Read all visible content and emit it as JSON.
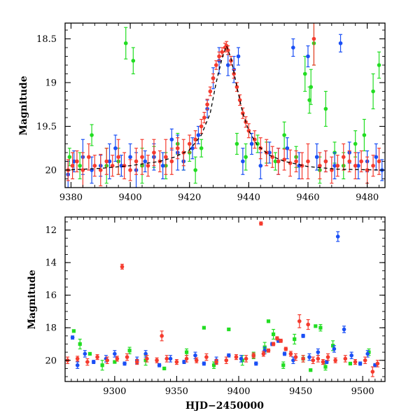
{
  "chart_data": [
    {
      "type": "scatter",
      "title": "",
      "xlabel": "",
      "ylabel": "Magnitude",
      "xlim": [
        9378,
        9486
      ],
      "ylim": [
        20.2,
        18.32
      ],
      "y_inverted": true,
      "x_ticks": [
        9380,
        9400,
        9420,
        9440,
        9460,
        9480
      ],
      "x_tick_labels": [
        "9380",
        "9400",
        "9420",
        "9440",
        "9460",
        "9480"
      ],
      "y_ticks": [
        18.5,
        19,
        19.5,
        20
      ],
      "y_tick_labels": [
        "18.5",
        "19",
        "19.5",
        "20"
      ],
      "model_curve": {
        "name": "model",
        "style": "dashed",
        "x": [
          9378,
          9390,
          9400,
          9410,
          9415,
          9420,
          9424,
          9427,
          9429,
          9431,
          9432.5,
          9434,
          9436,
          9438,
          9440,
          9443,
          9447,
          9452,
          9460,
          9470,
          9486
        ],
        "y": [
          20.0,
          19.98,
          19.95,
          19.9,
          19.85,
          19.77,
          19.6,
          19.35,
          19.0,
          18.72,
          18.58,
          18.72,
          19.05,
          19.35,
          19.55,
          19.72,
          19.83,
          19.9,
          19.96,
          19.99,
          20.0
        ]
      },
      "series": [
        {
          "name": "green",
          "color": "#22dd22",
          "x": [
            9379.5,
            9383,
            9387,
            9392,
            9396,
            9398.5,
            9401,
            9404,
            9408,
            9412,
            9416,
            9418,
            9420,
            9422,
            9424,
            9436,
            9439,
            9443,
            9446,
            9449,
            9452,
            9456,
            9459,
            9460.5,
            9461,
            9462,
            9464,
            9466,
            9469,
            9472,
            9476,
            9479,
            9482,
            9484
          ],
          "y": [
            19.85,
            19.95,
            19.6,
            19.95,
            19.9,
            18.55,
            18.75,
            19.95,
            19.85,
            19.95,
            19.7,
            19.9,
            19.8,
            20.0,
            19.75,
            19.7,
            19.85,
            19.7,
            19.8,
            19.9,
            19.6,
            19.85,
            18.9,
            19.2,
            19.05,
            18.55,
            20.0,
            19.3,
            19.8,
            19.95,
            19.7,
            19.6,
            19.1,
            18.8
          ],
          "err": [
            0.1,
            0.15,
            0.12,
            0.2,
            0.15,
            0.18,
            0.15,
            0.2,
            0.12,
            0.15,
            0.12,
            0.1,
            0.1,
            0.15,
            0.1,
            0.12,
            0.15,
            0.1,
            0.12,
            0.1,
            0.15,
            0.12,
            0.2,
            0.15,
            0.2,
            0.25,
            0.15,
            0.2,
            0.12,
            0.15,
            0.15,
            0.18,
            0.2,
            0.15
          ]
        },
        {
          "name": "blue",
          "color": "#1a4ff5",
          "x": [
            9379,
            9381,
            9384,
            9387,
            9390,
            9393,
            9395,
            9397,
            9400,
            9402,
            9405,
            9408,
            9411,
            9414,
            9416,
            9418,
            9421,
            9423,
            9426,
            9428,
            9430,
            9433,
            9435,
            9436.5,
            9438,
            9441,
            9444,
            9447,
            9450,
            9453,
            9455,
            9457,
            9460,
            9463,
            9466,
            9469,
            9471,
            9474,
            9477,
            9480,
            9483,
            9485
          ],
          "y": [
            20.05,
            19.9,
            19.85,
            20.0,
            19.95,
            19.9,
            19.75,
            19.95,
            19.85,
            20.0,
            19.9,
            19.85,
            19.95,
            19.65,
            19.8,
            19.9,
            19.75,
            19.6,
            19.3,
            18.95,
            18.75,
            18.8,
            18.85,
            18.7,
            19.9,
            19.7,
            19.95,
            19.8,
            19.9,
            19.75,
            18.6,
            19.95,
            18.7,
            19.85,
            19.9,
            19.95,
            18.55,
            19.8,
            19.95,
            19.9,
            19.85,
            20.0
          ],
          "err": [
            0.15,
            0.12,
            0.2,
            0.15,
            0.12,
            0.2,
            0.15,
            0.12,
            0.15,
            0.2,
            0.12,
            0.15,
            0.15,
            0.12,
            0.2,
            0.1,
            0.12,
            0.1,
            0.1,
            0.12,
            0.15,
            0.12,
            0.15,
            0.1,
            0.15,
            0.12,
            0.15,
            0.12,
            0.15,
            0.12,
            0.1,
            0.15,
            0.12,
            0.15,
            0.12,
            0.15,
            0.1,
            0.12,
            0.15,
            0.12,
            0.15,
            0.12
          ]
        },
        {
          "name": "red",
          "color": "#f53b2e",
          "x": [
            9379,
            9380.5,
            9382,
            9384,
            9386,
            9388,
            9390,
            9392,
            9394,
            9396,
            9398,
            9400,
            9402,
            9404,
            9406,
            9408,
            9410,
            9412,
            9414,
            9416,
            9418,
            9420,
            9422,
            9424,
            9425,
            9426,
            9427,
            9428,
            9429,
            9430,
            9431,
            9432,
            9432.5,
            9433,
            9434,
            9435,
            9436,
            9437,
            9438,
            9439,
            9440,
            9442,
            9444,
            9446,
            9448,
            9450,
            9452,
            9454,
            9456,
            9458,
            9460,
            9462,
            9464,
            9466,
            9468,
            9470,
            9472,
            9474,
            9476,
            9478,
            9480,
            9482,
            9484
          ],
          "y": [
            20.0,
            19.95,
            19.9,
            20.0,
            19.85,
            19.95,
            20.0,
            19.9,
            19.95,
            19.85,
            19.95,
            20.0,
            19.9,
            19.85,
            19.95,
            19.8,
            19.9,
            19.85,
            19.9,
            19.75,
            19.8,
            19.7,
            19.65,
            19.5,
            19.4,
            19.25,
            19.1,
            18.95,
            18.8,
            18.7,
            18.65,
            18.6,
            18.58,
            18.63,
            18.75,
            18.9,
            19.05,
            19.2,
            19.35,
            19.45,
            19.55,
            19.65,
            19.75,
            19.8,
            19.85,
            19.9,
            19.88,
            19.92,
            19.9,
            19.95,
            19.9,
            18.5,
            19.95,
            19.9,
            20.0,
            19.95,
            19.85,
            19.9,
            19.95,
            19.9,
            20.0,
            19.95,
            19.9
          ],
          "err": [
            0.12,
            0.15,
            0.12,
            0.2,
            0.15,
            0.12,
            0.18,
            0.15,
            0.12,
            0.2,
            0.15,
            0.12,
            0.15,
            0.2,
            0.12,
            0.15,
            0.12,
            0.2,
            0.15,
            0.12,
            0.15,
            0.1,
            0.1,
            0.08,
            0.06,
            0.06,
            0.05,
            0.05,
            0.05,
            0.05,
            0.05,
            0.05,
            0.05,
            0.05,
            0.05,
            0.05,
            0.05,
            0.06,
            0.06,
            0.06,
            0.08,
            0.1,
            0.12,
            0.15,
            0.12,
            0.15,
            0.12,
            0.15,
            0.12,
            0.15,
            0.2,
            0.3,
            0.15,
            0.12,
            0.15,
            0.12,
            0.15,
            0.12,
            0.15,
            0.12,
            0.15,
            0.12,
            0.15
          ]
        }
      ]
    },
    {
      "type": "scatter",
      "title": "",
      "xlabel": "HJD−2450000",
      "ylabel": "Magnitude",
      "xlim": [
        9260,
        9518
      ],
      "ylim": [
        21.3,
        11.2
      ],
      "y_inverted": true,
      "x_ticks": [
        9300,
        9350,
        9400,
        9450,
        9500
      ],
      "x_tick_labels": [
        "9300",
        "9350",
        "9400",
        "9450",
        "9500"
      ],
      "y_ticks": [
        12,
        14,
        16,
        18,
        20
      ],
      "y_tick_labels": [
        "12",
        "14",
        "16",
        "18",
        "20"
      ],
      "series": [
        {
          "name": "green",
          "color": "#22dd22",
          "marker": "square",
          "x": [
            9267,
            9272,
            9280,
            9290,
            9300,
            9312,
            9325,
            9340,
            9358,
            9372,
            9380,
            9392,
            9403,
            9412,
            9421,
            9424,
            9428,
            9436,
            9445,
            9452,
            9458,
            9462,
            9466,
            9470,
            9476,
            9490,
            9505
          ],
          "y": [
            18.2,
            19.0,
            19.6,
            20.3,
            20.1,
            19.4,
            20.0,
            20.5,
            19.5,
            18.0,
            20.3,
            18.1,
            20.0,
            19.7,
            19.2,
            17.6,
            18.4,
            20.3,
            18.7,
            19.9,
            20.6,
            17.9,
            18.0,
            20.4,
            19.1,
            20.2,
            19.5
          ],
          "err": [
            0,
            0.3,
            0,
            0.3,
            0,
            0.2,
            0.3,
            0,
            0.2,
            0,
            0.2,
            0,
            0.3,
            0.2,
            0.3,
            0,
            0.3,
            0.2,
            0.3,
            0.2,
            0,
            0,
            0.2,
            0.2,
            0.3,
            0,
            0.2
          ]
        },
        {
          "name": "blue",
          "color": "#1a4ff5",
          "marker": "circle",
          "x": [
            9266,
            9270,
            9276,
            9283,
            9293,
            9300,
            9308,
            9318,
            9325,
            9336,
            9345,
            9356,
            9365,
            9372,
            9382,
            9392,
            9402,
            9414,
            9421,
            9427,
            9432,
            9437,
            9444,
            9452,
            9457,
            9464,
            9471,
            9477,
            9480,
            9485,
            9491,
            9498,
            9504,
            9510
          ],
          "y": [
            18.6,
            20.3,
            19.6,
            20.1,
            19.9,
            19.6,
            20.2,
            20.0,
            19.6,
            20.3,
            19.9,
            20.1,
            19.7,
            20.2,
            20.0,
            19.7,
            19.9,
            20.2,
            19.4,
            19.0,
            18.8,
            19.6,
            20.0,
            18.5,
            19.8,
            19.5,
            20.1,
            19.3,
            12.4,
            18.1,
            19.7,
            20.2,
            19.6,
            20.3
          ],
          "err": [
            0.1,
            0.2,
            0.2,
            0.1,
            0.2,
            0.2,
            0.1,
            0.2,
            0.2,
            0.1,
            0.2,
            0.1,
            0.2,
            0.1,
            0.2,
            0.1,
            0.2,
            0.1,
            0.2,
            0.1,
            0.1,
            0.1,
            0.2,
            0.1,
            0.2,
            0.2,
            0.1,
            0.2,
            0.3,
            0.2,
            0.2,
            0.1,
            0.2,
            0.1
          ]
        },
        {
          "name": "red",
          "color": "#f53b2e",
          "marker": "circle",
          "x": [
            9262,
            9270,
            9278,
            9286,
            9294,
            9302,
            9306,
            9310,
            9318,
            9326,
            9334,
            9338,
            9342,
            9350,
            9358,
            9366,
            9374,
            9382,
            9390,
            9398,
            9406,
            9412,
            9418,
            9420,
            9424,
            9428,
            9431,
            9434,
            9438,
            9442,
            9446,
            9449,
            9452,
            9456,
            9460,
            9464,
            9468,
            9472,
            9478,
            9486,
            9494,
            9502,
            9508,
            9512
          ],
          "y": [
            20.0,
            19.9,
            20.1,
            19.8,
            20.0,
            19.9,
            14.25,
            19.8,
            20.1,
            19.9,
            20.0,
            18.5,
            19.9,
            20.1,
            19.9,
            20.0,
            19.8,
            20.1,
            20.0,
            19.8,
            19.9,
            19.7,
            11.6,
            19.6,
            19.4,
            19.0,
            18.65,
            18.8,
            19.3,
            19.6,
            19.8,
            17.6,
            19.9,
            17.8,
            20.0,
            19.9,
            20.1,
            19.8,
            20.0,
            19.9,
            20.1,
            20.0,
            20.7,
            20.2
          ],
          "err": [
            0.2,
            0.15,
            0.2,
            0.15,
            0.2,
            0.15,
            0.15,
            0.2,
            0.15,
            0.2,
            0.15,
            0.3,
            0.2,
            0.15,
            0.2,
            0.15,
            0.2,
            0.15,
            0.2,
            0.15,
            0.2,
            0.15,
            0.1,
            0.15,
            0.1,
            0.1,
            0.1,
            0.1,
            0.1,
            0.15,
            0.2,
            0.4,
            0.2,
            0.3,
            0.2,
            0.2,
            0.15,
            0.2,
            0.15,
            0.2,
            0.15,
            0.2,
            0.3,
            0.2
          ]
        }
      ]
    }
  ]
}
